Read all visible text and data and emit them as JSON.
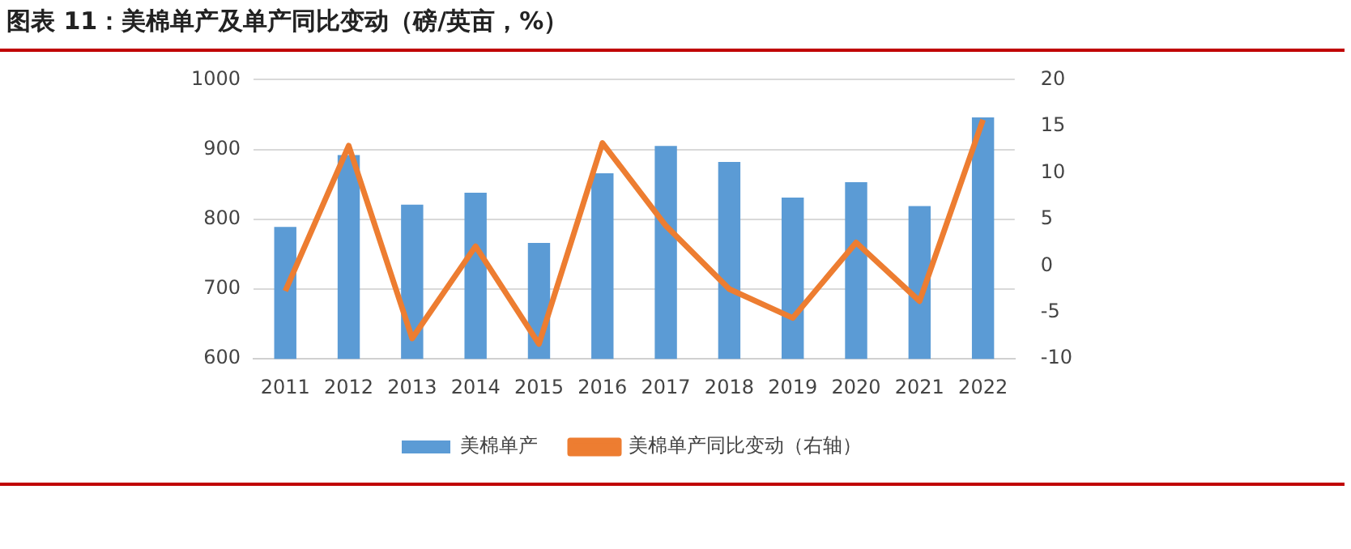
{
  "chart_data": {
    "type": "bar",
    "title": "图表 11：美棉单产及单产同比变动（磅/英亩，%）",
    "categories": [
      "2011",
      "2012",
      "2013",
      "2014",
      "2015",
      "2016",
      "2017",
      "2018",
      "2019",
      "2020",
      "2021",
      "2022"
    ],
    "series": [
      {
        "name": "美棉单产",
        "color": "#5b9bd5",
        "values": [
          789,
          892,
          821,
          838,
          766,
          866,
          905,
          882,
          831,
          853,
          819,
          946
        ]
      },
      {
        "name": "美棉单产同比变动（右轴）",
        "type": "line",
        "axis": "y2",
        "color": "#ed7d31",
        "values": [
          -2.7,
          12.9,
          -7.8,
          2.1,
          -8.4,
          13.2,
          4.3,
          -2.5,
          -5.6,
          2.5,
          -3.8,
          15.7
        ]
      }
    ],
    "ylim": [
      600,
      1000
    ],
    "yticks": [
      600,
      700,
      800,
      900,
      1000
    ],
    "y2lim": [
      -10,
      20
    ],
    "y2ticks": [
      -10,
      -5,
      0,
      5,
      10,
      15,
      20
    ],
    "grid": "y",
    "legend": "bottom",
    "marker": "none"
  }
}
